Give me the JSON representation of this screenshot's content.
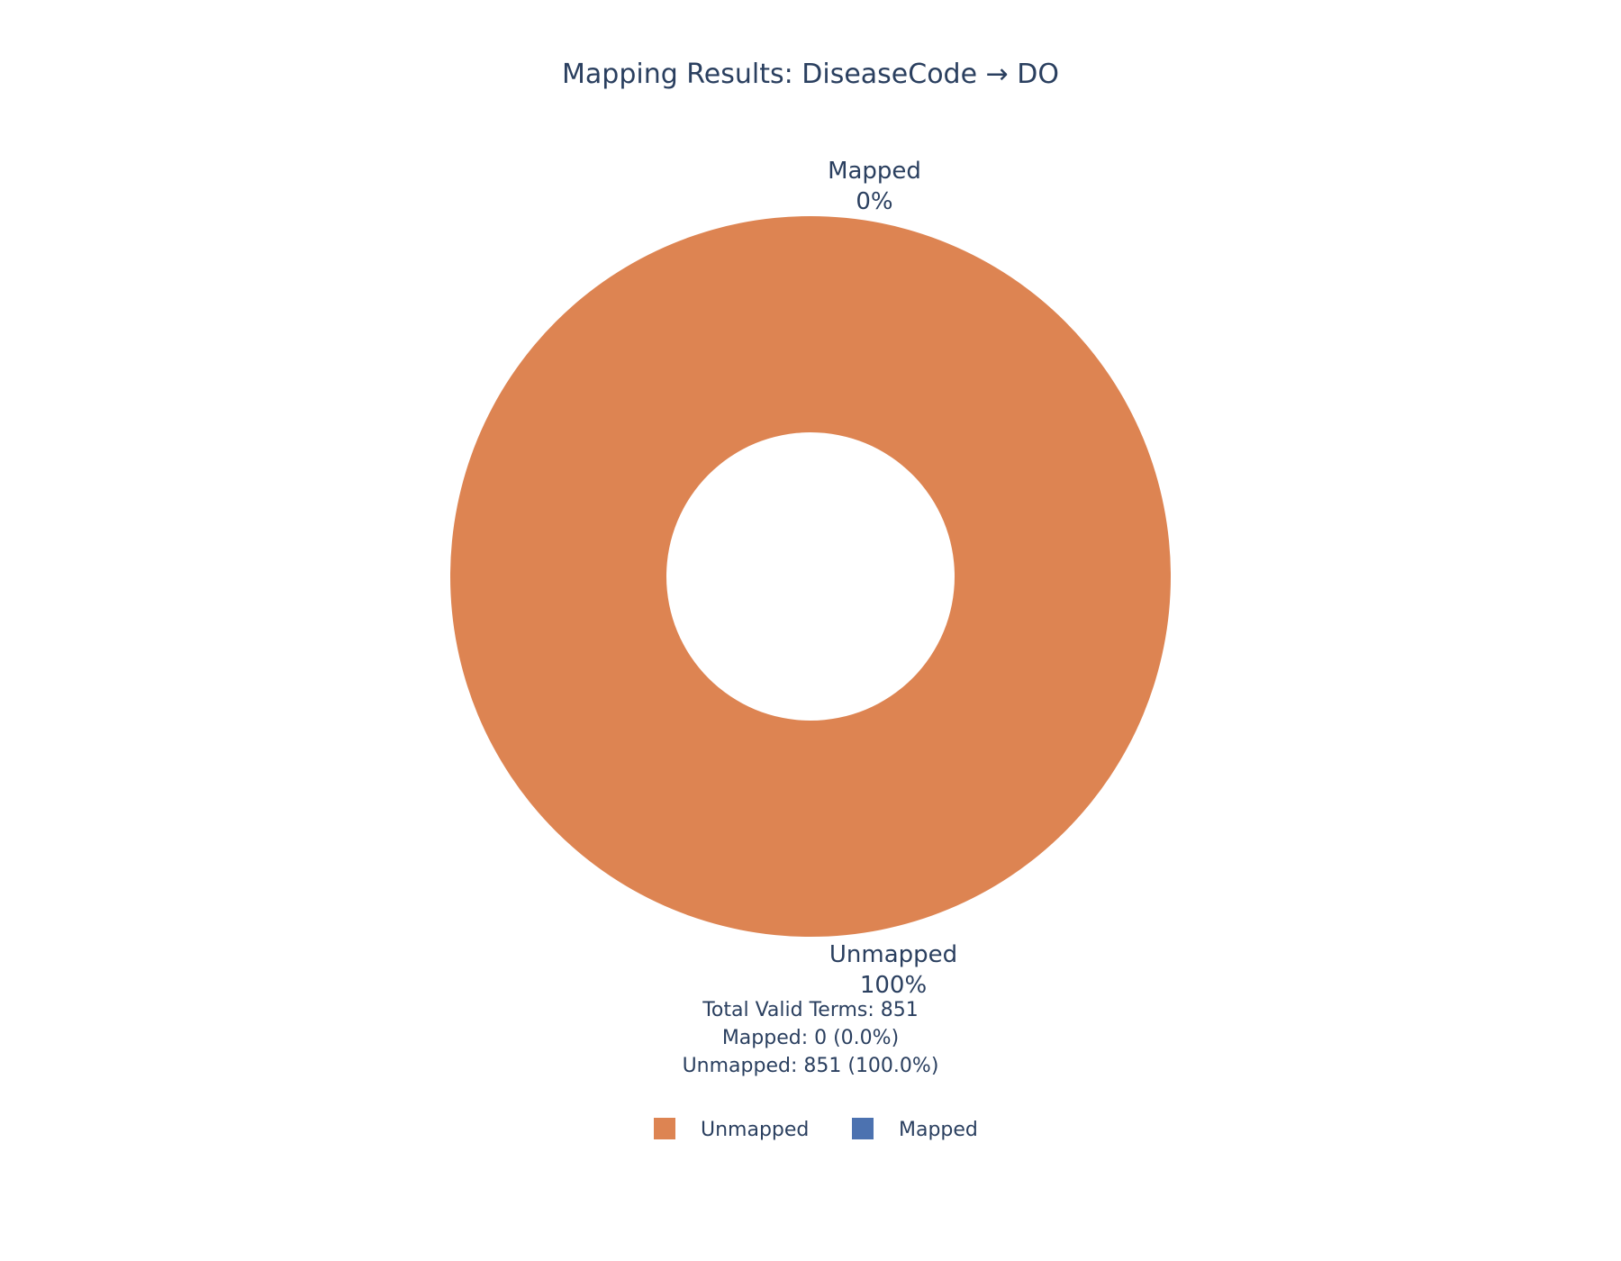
{
  "chart_data": {
    "type": "pie",
    "title": "Mapping Results: DiseaseCode → DO",
    "hole": true,
    "slices": [
      {
        "label": "Unmapped",
        "value": 851,
        "percent_text": "100%",
        "color": "#dd8452"
      },
      {
        "label": "Mapped",
        "value": 0,
        "percent_text": "0%",
        "color": "#4c72b0"
      }
    ],
    "annotation": [
      "Total Valid Terms: 851",
      "Mapped: 0 (0.0%)",
      "Unmapped: 851 (100.0%)"
    ],
    "legend": {
      "placement": "bottom-center",
      "orientation": "horizontal",
      "items": [
        {
          "label": "Unmapped",
          "color": "#dd8452"
        },
        {
          "label": "Mapped",
          "color": "#4c72b0"
        }
      ]
    }
  }
}
